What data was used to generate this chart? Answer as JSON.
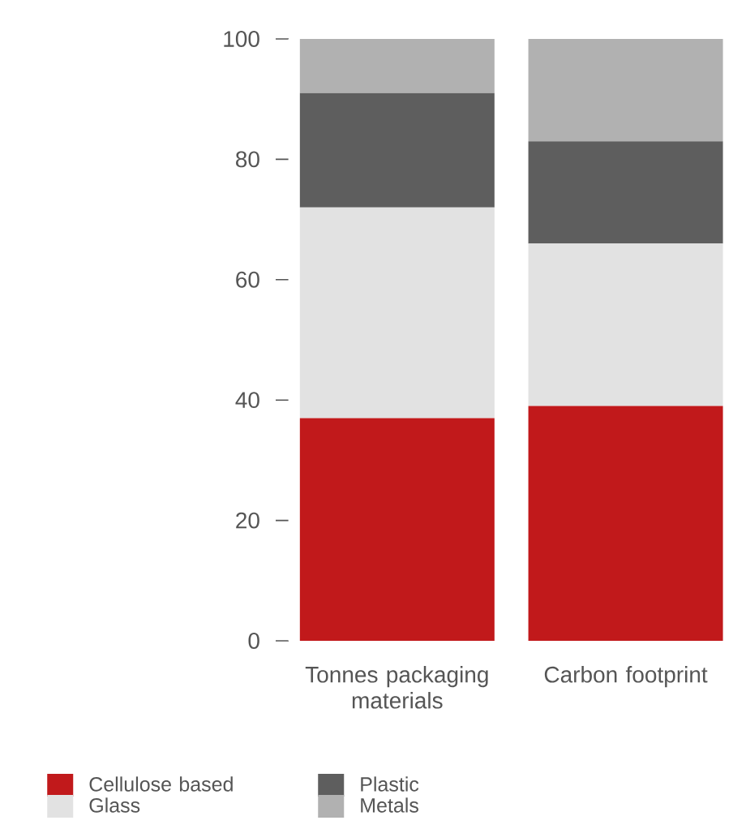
{
  "chart_data": {
    "type": "bar",
    "stacked": true,
    "categories": [
      "Tonnes packaging materials",
      "Carbon footprint"
    ],
    "series": [
      {
        "name": "Cellulose based",
        "color": "#c1191b",
        "values": [
          37,
          39
        ]
      },
      {
        "name": "Glass",
        "color": "#e2e2e2",
        "values": [
          35,
          27
        ]
      },
      {
        "name": "Plastic",
        "color": "#5e5e5e",
        "values": [
          19,
          17
        ]
      },
      {
        "name": "Metals",
        "color": "#b1b1b1",
        "values": [
          9,
          17
        ]
      }
    ],
    "ylim": [
      0,
      100
    ],
    "yticks": [
      0,
      20,
      40,
      60,
      80,
      100
    ],
    "grid": false,
    "legend": "bottom left"
  }
}
